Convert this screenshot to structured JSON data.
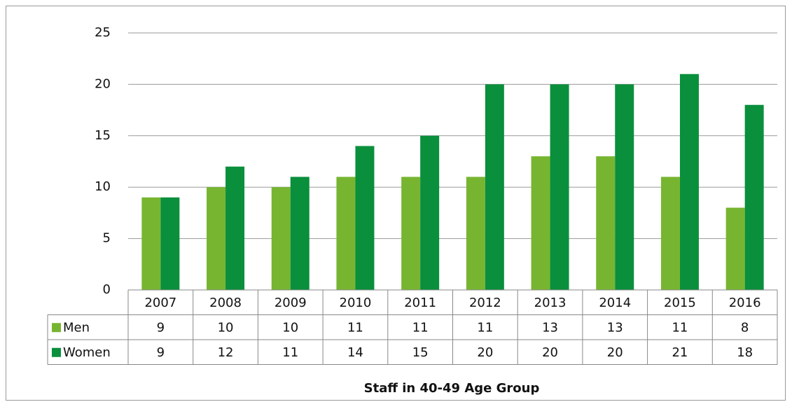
{
  "chart_data": {
    "type": "bar",
    "title": "Staff in 40-49 Age Group",
    "categories": [
      "2007",
      "2008",
      "2009",
      "2010",
      "2011",
      "2012",
      "2013",
      "2014",
      "2015",
      "2016"
    ],
    "series": [
      {
        "name": "Men",
        "color": "#77b531",
        "values": [
          9,
          10,
          10,
          11,
          11,
          11,
          13,
          13,
          11,
          8
        ]
      },
      {
        "name": "Women",
        "color": "#0a8f3c",
        "values": [
          9,
          12,
          11,
          14,
          15,
          20,
          20,
          20,
          21,
          18
        ]
      }
    ],
    "ylim": [
      0,
      25
    ],
    "yticks": [
      0,
      5,
      10,
      15,
      20,
      25
    ],
    "grid": true
  }
}
